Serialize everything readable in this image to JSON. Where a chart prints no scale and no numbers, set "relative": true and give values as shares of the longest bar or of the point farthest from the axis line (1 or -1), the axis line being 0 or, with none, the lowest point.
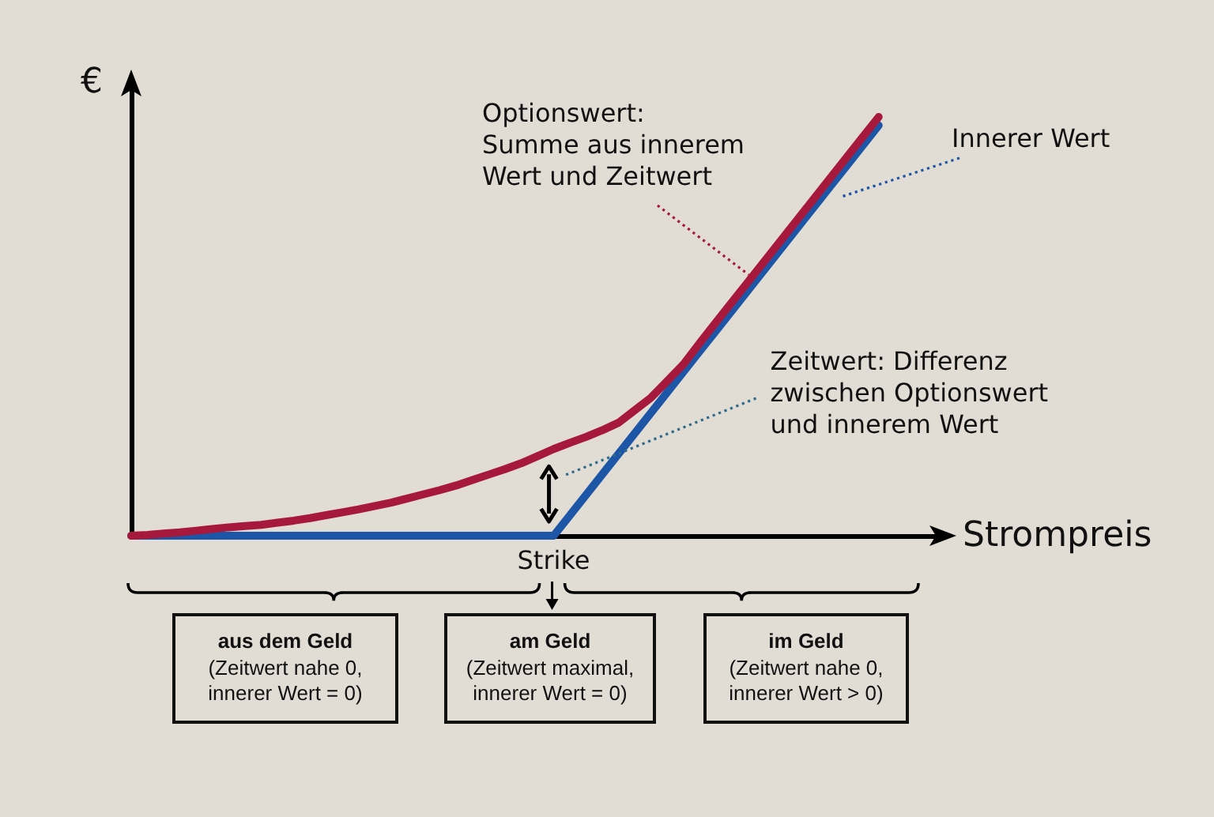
{
  "chart_data": {
    "type": "line",
    "relative": true,
    "xlabel": "Strompreis",
    "ylabel": "€",
    "marker": "none",
    "categories": [
      null,
      null,
      null,
      null,
      null,
      null,
      null,
      null,
      null,
      null,
      null,
      null,
      null,
      null,
      null,
      null,
      null,
      null,
      null,
      null,
      null,
      null,
      null,
      null,
      null,
      null,
      null,
      null,
      null,
      null,
      null,
      null,
      null,
      null,
      null,
      null,
      null,
      null,
      null,
      null,
      null,
      null,
      null,
      null,
      null,
      null,
      null,
      null,
      null,
      null,
      null
    ],
    "series": [
      {
        "name": "Innerer Wert",
        "color": "#1d56a6",
        "values": [
          0,
          0,
          0,
          0,
          0,
          0,
          0,
          0,
          0,
          0,
          0,
          0,
          0,
          0,
          0,
          0,
          0,
          0,
          0,
          0,
          0,
          0,
          0,
          0,
          0,
          0,
          0,
          0.049,
          0.098,
          0.147,
          0.196,
          0.245,
          0.294,
          0.343,
          0.392,
          0.441,
          0.49,
          0.539,
          0.588,
          0.637,
          0.686,
          0.735,
          0.784,
          0.833,
          0.882,
          0.931,
          0.98,
          null,
          null,
          null,
          null
        ]
      },
      {
        "name": "Optionswert: Summe aus innerem Wert und Zeitwert",
        "color": "#a6193c",
        "values": [
          0,
          0.002,
          0.005,
          0.008,
          0.012,
          0.016,
          0.02,
          0.023,
          0.026,
          0.031,
          0.036,
          0.042,
          0.049,
          0.056,
          0.063,
          0.071,
          0.079,
          0.089,
          0.099,
          0.109,
          0.12,
          0.133,
          0.146,
          0.159,
          0.173,
          0.19,
          0.207,
          0.222,
          0.236,
          0.252,
          0.27,
          0.3,
          0.33,
          0.37,
          0.41,
          0.461,
          0.51,
          0.559,
          0.608,
          0.657,
          0.706,
          0.755,
          0.804,
          0.853,
          0.902,
          0.951,
          1,
          null,
          null,
          null,
          null
        ]
      }
    ],
    "annotations": [
      "Strike",
      "Zeitwert: Differenz zwischen Optionswert und innerem Wert",
      "aus dem Geld",
      "(Zeitwert nahe 0, innerer Wert = 0)",
      "am Geld",
      "(Zeitwert maximal, innerer Wert = 0)",
      "im Geld",
      "(Zeitwert nahe 0, innerer Wert > 0)"
    ]
  }
}
